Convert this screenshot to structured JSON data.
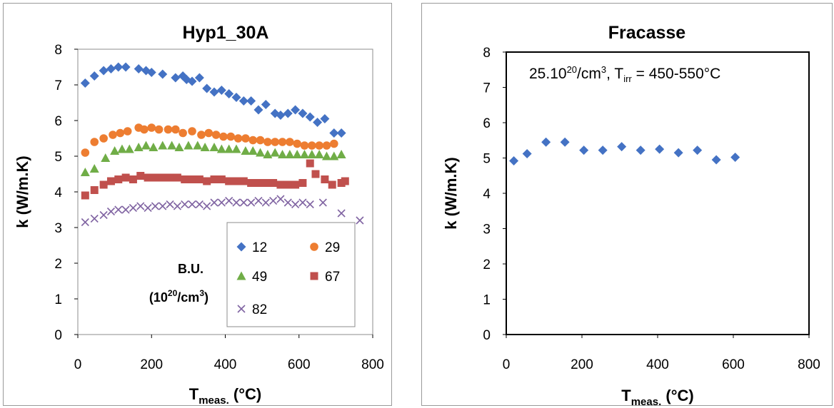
{
  "chart_data": [
    {
      "type": "scatter",
      "title": "Hyp1_30A",
      "xlabel": "T",
      "xlabel_sub": "meas.",
      "xlabel_unit": " (°C)",
      "ylabel": "k (W/m.K)",
      "xlim": [
        0,
        800
      ],
      "ylim": [
        0,
        8
      ],
      "xticks": [
        "0",
        "200",
        "400",
        "600",
        "800"
      ],
      "yticks": [
        "0",
        "1",
        "2",
        "3",
        "4",
        "5",
        "6",
        "7",
        "8"
      ],
      "grid": false,
      "legend_position": "bottom-right",
      "legend_caption_line1": "B.U.",
      "legend_caption_line2_pre": "(10",
      "legend_caption_line2_sup": "20",
      "legend_caption_line2_mid": "/cm",
      "legend_caption_line2_sup2": "3",
      "legend_caption_line2_post": ")",
      "series": [
        {
          "name": "12",
          "marker": "diamond",
          "color": "#4472C4",
          "x": [
            20,
            45,
            70,
            90,
            110,
            130,
            165,
            185,
            200,
            230,
            265,
            285,
            295,
            310,
            330,
            350,
            370,
            390,
            410,
            430,
            450,
            470,
            490,
            510,
            535,
            550,
            570,
            590,
            610,
            630,
            650,
            670,
            695,
            715
          ],
          "y": [
            7.05,
            7.25,
            7.4,
            7.45,
            7.5,
            7.5,
            7.45,
            7.4,
            7.35,
            7.3,
            7.2,
            7.25,
            7.15,
            7.1,
            7.2,
            6.9,
            6.8,
            6.85,
            6.75,
            6.65,
            6.55,
            6.55,
            6.3,
            6.45,
            6.2,
            6.15,
            6.2,
            6.3,
            6.2,
            6.1,
            5.95,
            6.05,
            5.65,
            5.65
          ]
        },
        {
          "name": "29",
          "marker": "circle",
          "color": "#ED7D31",
          "x": [
            20,
            45,
            70,
            95,
            115,
            135,
            165,
            180,
            200,
            220,
            245,
            265,
            285,
            310,
            335,
            355,
            375,
            395,
            415,
            435,
            455,
            475,
            495,
            515,
            535,
            555,
            575,
            595,
            615,
            635,
            655,
            675,
            695
          ],
          "y": [
            5.1,
            5.4,
            5.5,
            5.6,
            5.65,
            5.7,
            5.8,
            5.75,
            5.8,
            5.75,
            5.75,
            5.75,
            5.65,
            5.7,
            5.6,
            5.65,
            5.6,
            5.55,
            5.55,
            5.5,
            5.5,
            5.45,
            5.45,
            5.4,
            5.4,
            5.4,
            5.4,
            5.35,
            5.3,
            5.3,
            5.3,
            5.3,
            5.35
          ]
        },
        {
          "name": "49",
          "marker": "triangle",
          "color": "#70AD47",
          "x": [
            20,
            45,
            75,
            100,
            120,
            140,
            165,
            185,
            205,
            230,
            255,
            275,
            300,
            325,
            345,
            370,
            390,
            410,
            430,
            455,
            475,
            495,
            515,
            535,
            555,
            575,
            595,
            615,
            635,
            655,
            675,
            695,
            715
          ],
          "y": [
            4.55,
            4.65,
            4.95,
            5.15,
            5.2,
            5.2,
            5.25,
            5.3,
            5.25,
            5.3,
            5.3,
            5.25,
            5.3,
            5.3,
            5.25,
            5.25,
            5.2,
            5.2,
            5.2,
            5.15,
            5.15,
            5.1,
            5.05,
            5.1,
            5.05,
            5.05,
            5.05,
            5.05,
            5.05,
            5.05,
            5.0,
            5.0,
            5.05
          ]
        },
        {
          "name": "67",
          "marker": "square",
          "color": "#C0504D",
          "x": [
            20,
            45,
            70,
            90,
            110,
            130,
            150,
            170,
            190,
            210,
            230,
            250,
            270,
            290,
            310,
            330,
            350,
            370,
            390,
            410,
            430,
            450,
            470,
            490,
            510,
            530,
            550,
            570,
            590,
            610,
            630,
            645,
            670,
            690,
            715,
            725
          ],
          "y": [
            3.9,
            4.05,
            4.2,
            4.3,
            4.35,
            4.4,
            4.35,
            4.45,
            4.4,
            4.4,
            4.4,
            4.4,
            4.4,
            4.35,
            4.35,
            4.35,
            4.3,
            4.35,
            4.35,
            4.3,
            4.3,
            4.3,
            4.25,
            4.25,
            4.25,
            4.25,
            4.2,
            4.2,
            4.2,
            4.25,
            4.8,
            4.5,
            4.35,
            4.2,
            4.25,
            4.3
          ]
        },
        {
          "name": "82",
          "marker": "x",
          "color": "#8064A2",
          "x": [
            20,
            45,
            70,
            90,
            110,
            130,
            150,
            170,
            190,
            210,
            230,
            250,
            270,
            290,
            310,
            330,
            350,
            370,
            390,
            410,
            430,
            450,
            470,
            490,
            510,
            530,
            550,
            570,
            590,
            610,
            630,
            665,
            715,
            765
          ],
          "y": [
            3.15,
            3.25,
            3.35,
            3.45,
            3.5,
            3.5,
            3.55,
            3.6,
            3.55,
            3.6,
            3.6,
            3.65,
            3.6,
            3.65,
            3.65,
            3.65,
            3.6,
            3.7,
            3.7,
            3.75,
            3.7,
            3.7,
            3.7,
            3.75,
            3.7,
            3.75,
            3.8,
            3.7,
            3.65,
            3.7,
            3.65,
            3.7,
            3.4,
            3.2
          ]
        }
      ]
    },
    {
      "type": "scatter",
      "title": "Fracasse",
      "xlabel": "T",
      "xlabel_sub": "meas.",
      "xlabel_unit": " (°C)",
      "ylabel": "k (W/m.K)",
      "xlim": [
        0,
        800
      ],
      "ylim": [
        0,
        8
      ],
      "xticks": [
        "0",
        "200",
        "400",
        "600",
        "800"
      ],
      "yticks": [
        "0",
        "1",
        "2",
        "3",
        "4",
        "5",
        "6",
        "7",
        "8"
      ],
      "grid": false,
      "annotation_pre": "25.10",
      "annotation_sup": "20",
      "annotation_mid": "/cm",
      "annotation_sup2": "3",
      "annotation_mid2": ", T",
      "annotation_sub": "irr",
      "annotation_post": " = 450-550°C",
      "series": [
        {
          "marker": "diamond",
          "color": "#4472C4",
          "x": [
            20,
            55,
            105,
            155,
            205,
            255,
            305,
            355,
            405,
            455,
            505,
            555,
            605
          ],
          "y": [
            4.92,
            5.12,
            5.45,
            5.45,
            5.22,
            5.22,
            5.32,
            5.22,
            5.25,
            5.15,
            5.22,
            4.95,
            5.02
          ]
        }
      ]
    }
  ]
}
